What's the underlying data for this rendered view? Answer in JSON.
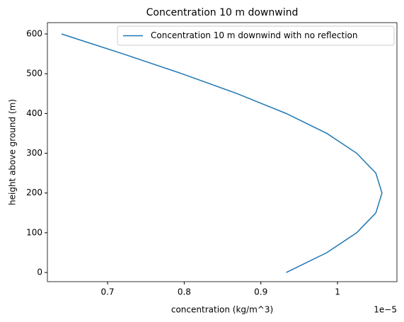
{
  "chart_data": {
    "type": "line",
    "title": "Concentration 10 m downwind",
    "x_label": "concentration (kg/m^3)",
    "y_label": "height above ground (m)",
    "x_offset_label": "1e−5",
    "x": [
      0.933,
      0.986,
      1.025,
      1.05,
      1.058,
      1.05,
      1.025,
      0.986,
      0.933,
      0.869,
      0.797,
      0.72,
      0.64
    ],
    "series": [
      {
        "name": "Concentration 10 m downwind with no reflection",
        "color": "#1f77b4",
        "values": [
          0,
          50,
          100,
          150,
          200,
          250,
          300,
          350,
          400,
          450,
          500,
          550,
          600
        ]
      }
    ],
    "xlim": [
      0.6215,
      1.0775
    ],
    "xticks": [
      0.7,
      0.8,
      0.9,
      1.0
    ],
    "ylim": [
      -23,
      628.5
    ],
    "yticks": [
      0,
      100,
      200,
      300,
      400,
      500,
      600
    ],
    "legend": "upper right",
    "grid": false
  }
}
